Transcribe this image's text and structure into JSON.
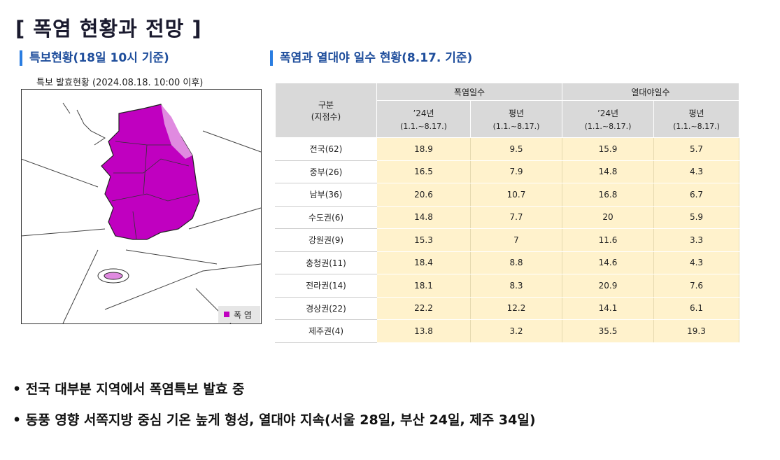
{
  "title": "[ 폭염 현황과 전망 ]",
  "left": {
    "heading": "특보현황(18일 10시 기준)",
    "map_caption": "특보 발효현황 (2024.08.18. 10:00 이후)",
    "legend": "폭 염"
  },
  "right": {
    "heading": "폭염과 열대야 일수 현황(8.17. 기준)"
  },
  "table": {
    "corner": [
      "구분",
      "(지점수)"
    ],
    "groups": [
      "폭염일수",
      "열대야일수"
    ],
    "subheaders": [
      [
        "’24년",
        "(1.1.~8.17.)"
      ],
      [
        "평년",
        "(1.1.~8.17.)"
      ],
      [
        "’24년",
        "(1.1.~8.17.)"
      ],
      [
        "평년",
        "(1.1.~8.17.)"
      ]
    ],
    "rows": [
      [
        "전국(62)",
        18.9,
        9.5,
        15.9,
        5.7
      ],
      [
        "중부(26)",
        16.5,
        7.9,
        14.8,
        4.3
      ],
      [
        "남부(36)",
        20.6,
        10.7,
        16.8,
        6.7
      ],
      [
        "수도권(6)",
        14.8,
        7.7,
        20,
        5.9
      ],
      [
        "강원권(9)",
        15.3,
        7,
        11.6,
        3.3
      ],
      [
        "충청권(11)",
        18.4,
        8.8,
        14.6,
        4.3
      ],
      [
        "전라권(14)",
        18.1,
        8.3,
        20.9,
        7.6
      ],
      [
        "경상권(22)",
        22.2,
        12.2,
        14.1,
        6.1
      ],
      [
        "제주권(4)",
        13.8,
        3.2,
        35.5,
        19.3
      ]
    ]
  },
  "bullets": [
    "전국 대부분 지역에서 폭염특보 발효 중",
    "동풍 영향 서쪽지방 중심 기온 높게 형성, 열대야 지속(서울 28일, 부산 24일, 제주 34일)"
  ]
}
